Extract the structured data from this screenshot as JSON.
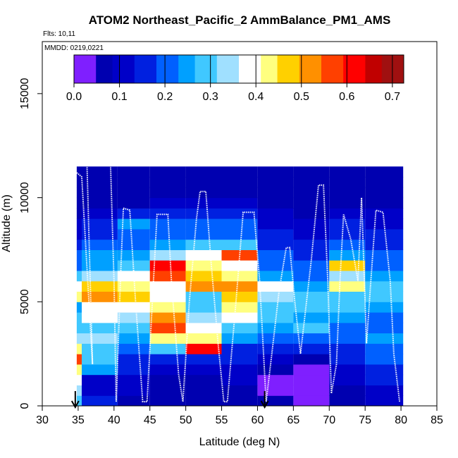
{
  "chart_data": {
    "type": "heatmap",
    "title": "ATOM2 Northeast_Pacific_2 AmmBalance_PM1_AMS",
    "flights_label": "Flts: 10,11",
    "dates_label": "MMDD: 0219,0221",
    "xlabel": "Latitude (deg N)",
    "ylabel": "Altitude (m)",
    "xlim": [
      30,
      85
    ],
    "ylim": [
      0,
      17500
    ],
    "x_ticks": [
      30,
      35,
      40,
      45,
      50,
      55,
      60,
      65,
      70,
      75,
      80,
      85
    ],
    "y_ticks": [
      0,
      5000,
      10000,
      15000
    ],
    "colorbar": {
      "range": [
        0,
        0.725
      ],
      "ticks": [
        0.0,
        0.1,
        0.2,
        0.3,
        0.4,
        0.5,
        0.6,
        0.7
      ],
      "tick_labels": [
        "0.0",
        "0.1",
        "0.2",
        "0.3",
        "0.4",
        "0.5",
        "0.6",
        "0.7"
      ],
      "colors": [
        "#7f1fff",
        "#0000b0",
        "#0000c8",
        "#0020e0",
        "#0060ff",
        "#00a0ff",
        "#40c8ff",
        "#a0e0ff",
        "#ffffff",
        "#ffff80",
        "#ffd000",
        "#ff9000",
        "#ff4000",
        "#ff0000",
        "#c00000",
        "#a01010"
      ]
    },
    "altitude_bins_m": [
      500,
      1000,
      1500,
      2000,
      2500,
      3000,
      3500,
      4000,
      4500,
      5000,
      5500,
      6000,
      6500,
      7000,
      7500,
      8000,
      8500,
      9000,
      9500,
      10000,
      10500,
      11000,
      11500
    ],
    "columns": [
      {
        "lat": [
          34.8,
          35.5
        ],
        "values": [
          0.3,
          0.35,
          0.4,
          0.45,
          0.55,
          0.45,
          0.35,
          0.3,
          0.28,
          0.25,
          0.45,
          0.4,
          0.3,
          0.22,
          0.2,
          0.15,
          0.12,
          0.1,
          0.08,
          0.06,
          0.05,
          0.05,
          0.05
        ]
      },
      {
        "lat": [
          35.5,
          40.5
        ],
        "values": [
          0.18,
          0.12,
          0.1,
          0.25,
          0.3,
          0.28,
          0.35,
          0.3,
          0.38,
          0.4,
          0.52,
          0.48,
          0.35,
          0.25,
          0.25,
          0.2,
          0.18,
          0.15,
          0.1,
          0.08,
          0.06,
          0.05,
          0.05
        ]
      },
      {
        "lat": [
          40.5,
          45.0
        ],
        "values": [
          0.08,
          0.1,
          0.12,
          0.15,
          0.18,
          0.22,
          0.25,
          0.3,
          0.35,
          0.38,
          0.48,
          0.42,
          0.4,
          0.3,
          0.25,
          0.22,
          0.2,
          0.25,
          0.15,
          0.08,
          0.06,
          0.05,
          0.05
        ]
      },
      {
        "lat": [
          45.0,
          50.0
        ],
        "values": [
          0.05,
          0.06,
          0.08,
          0.12,
          0.18,
          0.3,
          0.45,
          0.55,
          0.5,
          0.42,
          0.38,
          0.4,
          0.55,
          0.6,
          0.35,
          0.25,
          0.2,
          0.22,
          0.18,
          0.1,
          0.06,
          0.05,
          0.05
        ]
      },
      {
        "lat": [
          50.0,
          55.0
        ],
        "values": [
          0.05,
          0.06,
          0.08,
          0.12,
          0.18,
          0.62,
          0.45,
          0.38,
          0.35,
          0.3,
          0.28,
          0.52,
          0.48,
          0.42,
          0.4,
          0.3,
          0.22,
          0.2,
          0.18,
          0.1,
          0.06,
          0.05,
          0.05
        ]
      },
      {
        "lat": [
          55.0,
          60.0
        ],
        "values": [
          0.06,
          0.08,
          0.1,
          0.12,
          0.15,
          0.18,
          0.25,
          0.3,
          0.4,
          0.45,
          0.48,
          0.5,
          0.45,
          0.4,
          0.55,
          0.3,
          0.22,
          0.2,
          0.15,
          0.1,
          0.06,
          0.05,
          0.05
        ]
      },
      {
        "lat": [
          60.0,
          65.0
        ],
        "values": [
          0.05,
          0.04,
          0.04,
          0.06,
          0.1,
          0.15,
          0.2,
          0.25,
          0.3,
          0.28,
          0.32,
          0.4,
          0.25,
          0.2,
          0.22,
          0.18,
          0.15,
          0.12,
          0.1,
          0.08,
          0.06,
          0.05,
          0.05
        ]
      },
      {
        "lat": [
          65.0,
          70.0
        ],
        "values": [
          0.03,
          0.02,
          0.02,
          0.04,
          0.08,
          0.15,
          0.22,
          0.28,
          0.25,
          0.3,
          0.28,
          0.25,
          0.22,
          0.2,
          0.18,
          0.15,
          0.12,
          0.1,
          0.08,
          0.06,
          0.05,
          0.05,
          0.05
        ]
      },
      {
        "lat": [
          70.0,
          75.0
        ],
        "values": [
          0.06,
          0.08,
          0.1,
          0.12,
          0.15,
          0.18,
          0.2,
          0.22,
          0.25,
          0.28,
          0.3,
          0.45,
          0.35,
          0.48,
          0.25,
          0.2,
          0.18,
          0.15,
          0.12,
          0.08,
          0.06,
          0.05,
          0.05
        ]
      },
      {
        "lat": [
          75.0,
          80.3
        ],
        "values": [
          0.1,
          0.12,
          0.15,
          0.18,
          0.2,
          0.22,
          0.25,
          0.2,
          0.22,
          0.25,
          0.28,
          0.3,
          0.25,
          0.22,
          0.2,
          0.18,
          0.15,
          0.12,
          0.1,
          0.08,
          0.06,
          0.05,
          0.05
        ]
      }
    ],
    "flight_track": [
      [
        34.8,
        11200
      ],
      [
        35.5,
        11000
      ],
      [
        36.0,
        8000
      ],
      [
        36.5,
        5000
      ],
      [
        37.0,
        2000
      ],
      [
        36.2,
        12000
      ],
      [
        38.5,
        11900
      ],
      [
        39.5,
        11800
      ],
      [
        40.0,
        6000
      ],
      [
        40.3,
        200
      ],
      [
        41.0,
        7000
      ],
      [
        41.3,
        9500
      ],
      [
        42.2,
        9400
      ],
      [
        43.0,
        5000
      ],
      [
        44.0,
        200
      ],
      [
        44.6,
        200
      ],
      [
        45.5,
        6000
      ],
      [
        46.0,
        9200
      ],
      [
        47.5,
        9200
      ],
      [
        48.0,
        6000
      ],
      [
        49.0,
        1500
      ],
      [
        49.6,
        200
      ],
      [
        50.5,
        5000
      ],
      [
        51.5,
        9000
      ],
      [
        52.0,
        10300
      ],
      [
        52.8,
        10300
      ],
      [
        53.5,
        7000
      ],
      [
        54.5,
        3000
      ],
      [
        55.3,
        200
      ],
      [
        55.8,
        200
      ],
      [
        57.0,
        5000
      ],
      [
        58.0,
        9300
      ],
      [
        59.5,
        9300
      ],
      [
        60.3,
        6000
      ],
      [
        61.0,
        1500
      ],
      [
        61.2,
        200
      ],
      [
        62.0,
        2500
      ],
      [
        63.0,
        5500
      ],
      [
        64.0,
        7600
      ],
      [
        64.5,
        7600
      ],
      [
        65.2,
        5000
      ],
      [
        66.0,
        2500
      ],
      [
        67.5,
        7000
      ],
      [
        68.5,
        10600
      ],
      [
        69.2,
        10600
      ],
      [
        69.8,
        6000
      ],
      [
        70.3,
        600
      ],
      [
        71.0,
        2000
      ],
      [
        71.5,
        6000
      ],
      [
        72.0,
        9200
      ],
      [
        73.0,
        8000
      ],
      [
        74.0,
        6000
      ],
      [
        74.5,
        10000
      ],
      [
        74.8,
        7000
      ],
      [
        75.2,
        3000
      ],
      [
        75.8,
        6000
      ],
      [
        76.5,
        9400
      ],
      [
        77.5,
        9300
      ],
      [
        78.5,
        6000
      ],
      [
        79.0,
        2500
      ],
      [
        79.8,
        200
      ]
    ],
    "markers": [
      {
        "lat": 34.6,
        "direction": "down"
      },
      {
        "lat": 61.0,
        "direction": "down"
      }
    ],
    "grid": false,
    "legend": "none"
  }
}
